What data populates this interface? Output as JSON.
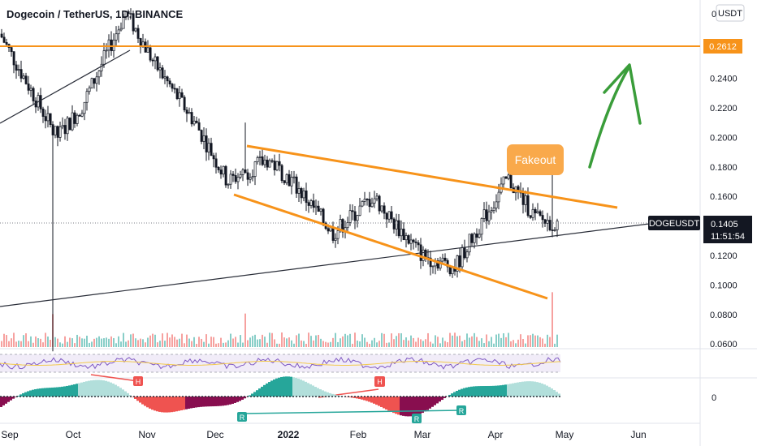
{
  "header": {
    "title": "Dogecoin / TetherUS, 1D, BINANCE"
  },
  "price_axis": {
    "currency": "USDT",
    "ticks": [
      "0.2400",
      "0.2200",
      "0.2000",
      "0.1800",
      "0.1600",
      "0.1400",
      "0.1200",
      "0.1000",
      "0.0800",
      "0.0600"
    ],
    "top_tick": "0"
  },
  "time_axis": {
    "labels": [
      "Sep",
      "Oct",
      "Nov",
      "Dec",
      "2022",
      "Feb",
      "Mar",
      "Apr",
      "May",
      "Jun"
    ]
  },
  "markers": {
    "resistance_price": "0.2612",
    "symbol": "DOGEUSDT",
    "last_price": "0.1405",
    "countdown": "11:51:54"
  },
  "annotation": {
    "fakeout": "Fakeout"
  },
  "oscillator": {
    "zero_label": "0",
    "labels": [
      "H",
      "H",
      "R",
      "R",
      "R"
    ]
  },
  "colors": {
    "up": "#26a69a",
    "down": "#ef5350",
    "orange": "#f7931a",
    "green_arrow": "#3a9d3a",
    "trendline": "#2a2e39",
    "rsi": "#7e57c2"
  },
  "chart_data": {
    "type": "candlestick",
    "title": "Dogecoin / TetherUS, 1D, BINANCE",
    "x_axis_labels": [
      "Sep",
      "Oct",
      "Nov",
      "Dec",
      "2022",
      "Feb",
      "Mar",
      "Apr",
      "May",
      "Jun"
    ],
    "y_axis": {
      "ticks": [
        0.06,
        0.08,
        0.1,
        0.12,
        0.14,
        0.16,
        0.18,
        0.2,
        0.22,
        0.24
      ],
      "range": [
        0.055,
        0.29
      ]
    },
    "approx_close_path": [
      {
        "x": "Sep",
        "y": 0.27
      },
      {
        "x": "Sep (mid)",
        "y": 0.24
      },
      {
        "x": "Sep (late)",
        "y": 0.2
      },
      {
        "x": "Oct",
        "y": 0.22
      },
      {
        "x": "Nov",
        "y": 0.28
      },
      {
        "x": "Nov (mid)",
        "y": 0.25
      },
      {
        "x": "Dec",
        "y": 0.21
      },
      {
        "x": "Dec (mid)",
        "y": 0.17
      },
      {
        "x": "Dec (late)",
        "y": 0.185
      },
      {
        "x": "2022",
        "y": 0.17
      },
      {
        "x": "Jan (mid)",
        "y": 0.14
      },
      {
        "x": "Feb",
        "y": 0.16
      },
      {
        "x": "Feb (mid)",
        "y": 0.14
      },
      {
        "x": "Mar",
        "y": 0.12
      },
      {
        "x": "Mar (mid)",
        "y": 0.115
      },
      {
        "x": "Apr",
        "y": 0.14
      },
      {
        "x": "Apr (early)",
        "y": 0.175
      },
      {
        "x": "Apr (late)",
        "y": 0.1405
      }
    ],
    "resistance_level": 0.2612,
    "last_price": 0.1405,
    "pattern": "falling wedge",
    "annotation": "Fakeout"
  }
}
